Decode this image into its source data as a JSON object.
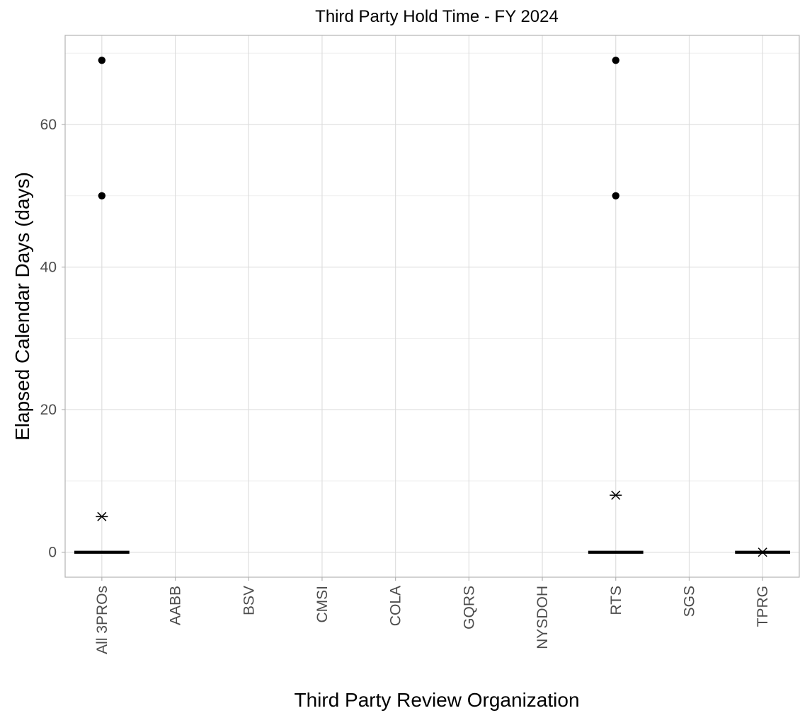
{
  "chart_data": {
    "type": "boxplot",
    "title": "Third Party Hold Time - FY 2024",
    "xlabel": "Third Party Review Organization",
    "ylabel": "Elapsed Calendar Days (days)",
    "categories": [
      "All 3PROs",
      "AABB",
      "BSV",
      "CMSI",
      "COLA",
      "GQRS",
      "NYSDOH",
      "RTS",
      "SGS",
      "TPRG"
    ],
    "y_ticks": [
      0,
      20,
      40,
      60
    ],
    "ylim": [
      -3.5,
      72.5
    ],
    "grid": true,
    "legend": "none",
    "boxes": [
      {
        "category": "All 3PROs",
        "median": 0,
        "outliers": [
          50,
          69
        ],
        "mean": 5
      },
      {
        "category": "RTS",
        "median": 0,
        "outliers": [
          50,
          69
        ],
        "mean": 8
      },
      {
        "category": "TPRG",
        "median": 0,
        "outliers": [],
        "mean": 0
      }
    ],
    "colors": {
      "marks": "#000000",
      "tick_text": "#4d4d4d",
      "grid": "#dcdcdc"
    }
  }
}
